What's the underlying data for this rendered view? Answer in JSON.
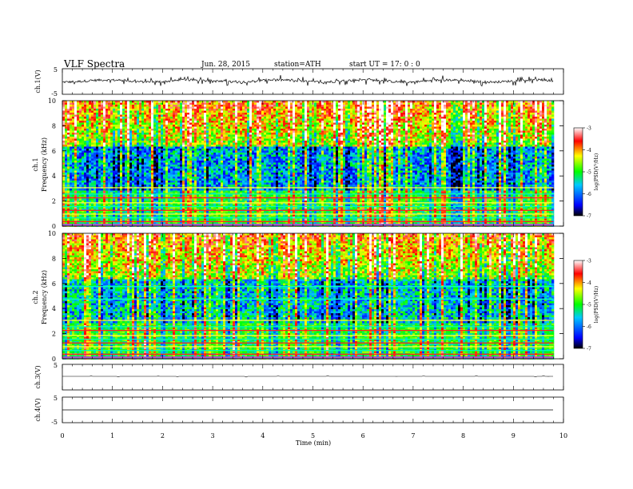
{
  "header": {
    "title": "VLF  Spectra",
    "date": "Jun. 28, 2015",
    "station": "station=ATH",
    "start_ut": "start  UT  =    17: 0   : 0"
  },
  "chart_data": [
    {
      "type": "line",
      "panel": "ch1-waveform",
      "ylabel": "ch.1(V)",
      "ylim": [
        -5,
        5
      ],
      "yticks": [
        "5",
        "-5"
      ],
      "x_range_min": [
        0,
        9.8
      ],
      "baseline_v": 0.2,
      "noise_amplitude_v": 1.5
    },
    {
      "type": "heatmap",
      "panel": "ch1-spectrogram",
      "ylabel": "ch.1\nFrequency  (kHz)",
      "ylabel_line1": "ch.1",
      "ylabel_line2": "Frequency  (kHz)",
      "ylim": [
        0,
        10
      ],
      "yticks": [
        "0",
        "2",
        "4",
        "6",
        "8",
        "10"
      ],
      "x_range_min": [
        0,
        9.8
      ],
      "colorbar": {
        "label": "log(PSD(V²/Hz)",
        "range": [
          -7,
          -3
        ],
        "ticks": [
          "-3",
          "-4",
          "-5",
          "-6",
          "-7"
        ],
        "colors": [
          "#000000",
          "#0000ff",
          "#00ff00",
          "#ffff00",
          "#ff0000",
          "#ffffff"
        ]
      }
    },
    {
      "type": "heatmap",
      "panel": "ch2-spectrogram",
      "ylabel": "ch.2\nFrequency  (kHz)",
      "ylabel_line1": "ch.2",
      "ylabel_line2": "Frequency  (kHz)",
      "ylim": [
        0,
        10
      ],
      "yticks": [
        "0",
        "2",
        "4",
        "6",
        "8",
        "10"
      ],
      "x_range_min": [
        0,
        9.8
      ],
      "colorbar": {
        "label": "log(PSD(V²/Hz)",
        "range": [
          -7,
          -3
        ],
        "ticks": [
          "-3",
          "-4",
          "-5",
          "-6",
          "-7"
        ],
        "colors": [
          "#000000",
          "#0000ff",
          "#00ff00",
          "#ffff00",
          "#ff0000",
          "#ffffff"
        ]
      }
    },
    {
      "type": "line",
      "panel": "ch3-waveform",
      "ylabel": "ch.3(V)",
      "ylim": [
        -5,
        5
      ],
      "yticks": [
        "5"
      ],
      "x_range_min": [
        0,
        9.8
      ],
      "baseline_v": 0
    },
    {
      "type": "line",
      "panel": "ch4-waveform",
      "ylabel": "ch.4(V)",
      "ylim": [
        -5,
        5
      ],
      "yticks": [
        "5",
        "-5"
      ],
      "x_range_min": [
        0,
        9.8
      ],
      "baseline_v": 0
    }
  ],
  "x_axis": {
    "label": "Time  (min)",
    "ticks": [
      "0",
      "1",
      "2",
      "3",
      "4",
      "5",
      "6",
      "7",
      "8",
      "9",
      "10"
    ],
    "xlim": [
      0,
      10
    ]
  }
}
